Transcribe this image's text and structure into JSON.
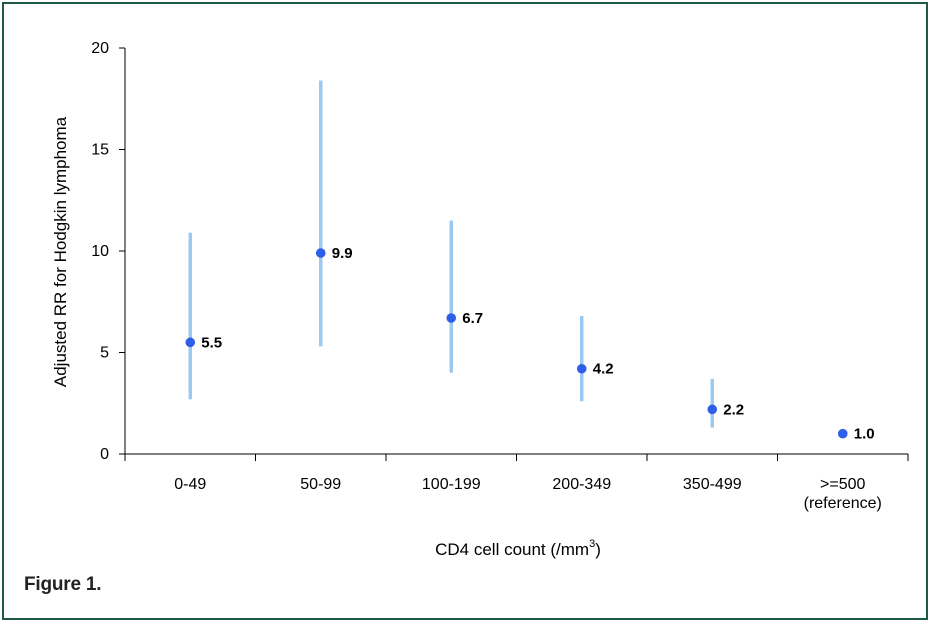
{
  "chart_data": {
    "type": "scatter",
    "title": "",
    "ylabel": "Adjusted RR for Hodgkin lymphoma",
    "xlabel": {
      "prefix": "CD4 cell count (/mm",
      "superscript": "3",
      "suffix": ")"
    },
    "ylim": [
      0,
      20
    ],
    "yticks": [
      0,
      5,
      10,
      15,
      20
    ],
    "grid": false,
    "legend": "none",
    "categories": [
      [
        "0-49"
      ],
      [
        "50-99"
      ],
      [
        "100-199"
      ],
      [
        "200-349"
      ],
      [
        "350-499"
      ],
      [
        ">=500",
        "(reference)"
      ]
    ],
    "series": [
      {
        "point_color": "#2f5ee8",
        "ci_color": "#9cc9f2",
        "values": [
          5.5,
          9.9,
          6.7,
          4.2,
          2.2,
          1.0
        ],
        "labels": [
          "5.5",
          "9.9",
          "6.7",
          "4.2",
          "2.2",
          "1.0"
        ],
        "ci_lower": [
          2.7,
          5.3,
          4.0,
          2.6,
          1.3,
          null
        ],
        "ci_upper": [
          10.9,
          18.4,
          11.5,
          6.8,
          3.7,
          null
        ]
      }
    ]
  },
  "caption": "Figure 1."
}
